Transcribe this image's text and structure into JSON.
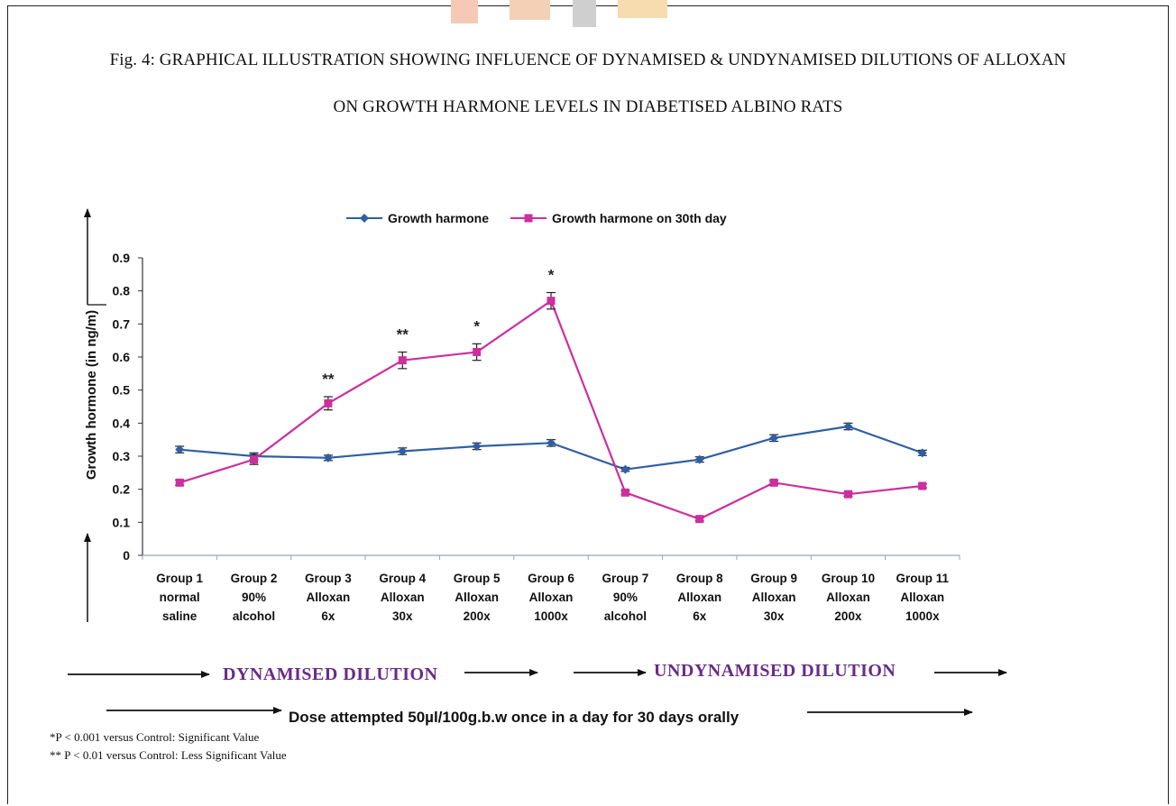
{
  "figure": {
    "title_line1": "Fig. 4: GRAPHICAL ILLUSTRATION SHOWING INFLUENCE OF DYNAMISED & UNDYNAMISED DILUTIONS OF ALLOXAN",
    "title_line2": "ON GROWTH HARMONE LEVELS IN DIABETISED ALBINO RATS",
    "band_left": "DYNAMISED DILUTION",
    "band_right": "UNDYNAMISED DILUTION",
    "dose_text": "Dose attempted 50µl/100g.b.w once in a day  for 30 days orally",
    "footnote1": "*P < 0.001 versus Control: Significant Value",
    "footnote2": "** P < 0.01 versus Control: Less Significant Value"
  },
  "colors": {
    "series1": "#2e5fa3",
    "series2": "#cc2f9e",
    "band_text": "#6a2b86",
    "axis": "#333333",
    "grid": "#9aa3b0"
  },
  "chart_data": {
    "type": "line",
    "title": "",
    "ylabel": "Growth hormone  (in ng/m)",
    "xlabel": "",
    "ylim": [
      0,
      0.9
    ],
    "yticks": [
      "0",
      "0.1",
      "0.2",
      "0.3",
      "0.4",
      "0.5",
      "0.6",
      "0.7",
      "0.8",
      "0.9"
    ],
    "legend_position": "top-center",
    "categories": [
      [
        "Group 1",
        "normal",
        "saline"
      ],
      [
        "Group 2",
        "90%",
        "alcohol"
      ],
      [
        "Group 3",
        "Alloxan",
        "6x"
      ],
      [
        "Group 4",
        "Alloxan",
        "30x"
      ],
      [
        "Group 5",
        "Alloxan",
        "200x"
      ],
      [
        "Group 6",
        "Alloxan",
        "1000x"
      ],
      [
        "Group 7",
        "90%",
        "alcohol"
      ],
      [
        "Group 8",
        "Alloxan",
        "6x"
      ],
      [
        "Group 9",
        "Alloxan",
        "30x"
      ],
      [
        "Group 10",
        "Alloxan",
        "200x"
      ],
      [
        "Group 11",
        "Alloxan",
        "1000x"
      ]
    ],
    "series": [
      {
        "name": "Growth harmone",
        "values": [
          0.32,
          0.3,
          0.295,
          0.315,
          0.33,
          0.34,
          0.26,
          0.29,
          0.355,
          0.39,
          0.31
        ],
        "error": [
          0.01,
          0.01,
          0.008,
          0.01,
          0.01,
          0.01,
          0.006,
          0.008,
          0.01,
          0.01,
          0.008
        ]
      },
      {
        "name": "Growth harmone on 30th day",
        "values": [
          0.22,
          0.29,
          0.46,
          0.59,
          0.615,
          0.77,
          0.19,
          0.11,
          0.22,
          0.185,
          0.21
        ],
        "error": [
          0.008,
          0.015,
          0.02,
          0.025,
          0.025,
          0.025,
          0.006,
          0.006,
          0.006,
          0.006,
          0.006
        ]
      }
    ],
    "annotations": [
      "",
      "",
      "**",
      "**",
      "*",
      "*",
      "",
      "",
      "",
      "",
      ""
    ]
  }
}
